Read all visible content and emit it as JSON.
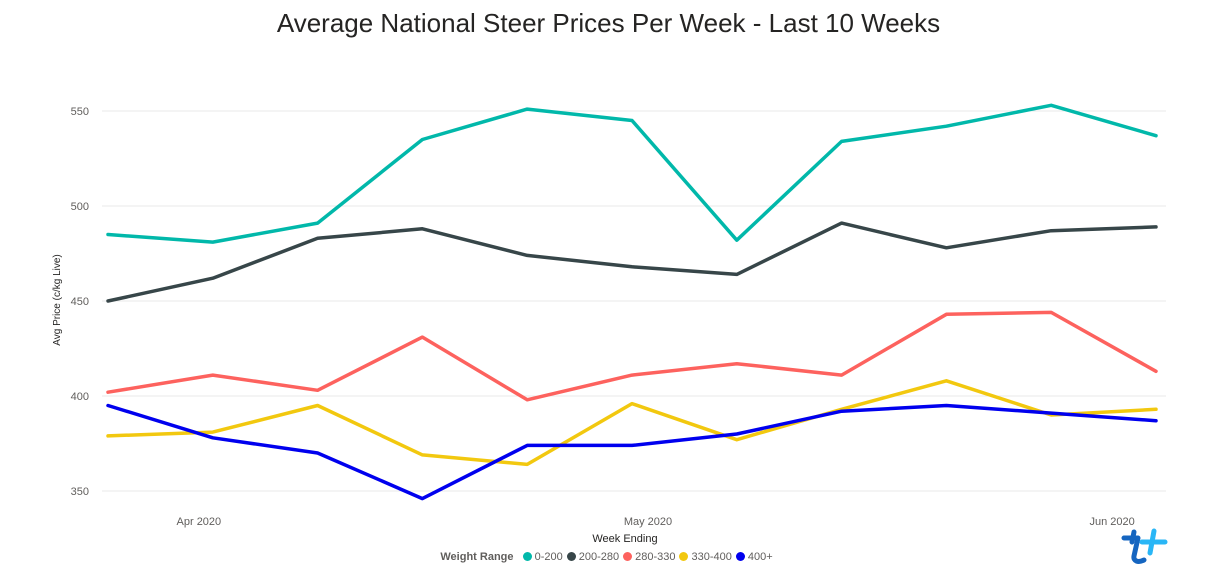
{
  "title": "Average National Steer Prices Per Week - Last 10 Weeks",
  "chart_data": {
    "type": "line",
    "title": "Average National Steer Prices Per Week - Last 10 Weeks",
    "xlabel": "Week Ending",
    "ylabel": "Avg Price (c/kg Live)",
    "x_ticks": [
      "Apr 2020",
      "May 2020",
      "Jun 2020"
    ],
    "x": [
      "2020-03-27",
      "2020-04-03",
      "2020-04-10",
      "2020-04-17",
      "2020-04-24",
      "2020-05-01",
      "2020-05-08",
      "2020-05-15",
      "2020-05-22",
      "2020-05-29",
      "2020-06-05"
    ],
    "y_ticks": [
      350,
      400,
      450,
      500,
      550
    ],
    "ylim": [
      340,
      560
    ],
    "grid": true,
    "legend_title": "Weight Range",
    "legend_position": "bottom",
    "series": [
      {
        "name": "0-200",
        "color": "#01b8aa",
        "values": [
          485,
          481,
          491,
          535,
          551,
          545,
          482,
          534,
          542,
          553,
          537
        ]
      },
      {
        "name": "200-280",
        "color": "#374649",
        "values": [
          450,
          462,
          483,
          488,
          474,
          468,
          464,
          491,
          478,
          487,
          489
        ]
      },
      {
        "name": "280-330",
        "color": "#fd625e",
        "values": [
          402,
          411,
          403,
          431,
          398,
          411,
          417,
          411,
          443,
          444,
          413
        ]
      },
      {
        "name": "330-400",
        "color": "#f2c80f",
        "values": [
          379,
          381,
          395,
          369,
          364,
          396,
          377,
          393,
          408,
          390,
          393
        ]
      },
      {
        "name": "400+",
        "color": "#0000ee",
        "values": [
          395,
          378,
          370,
          346,
          374,
          374,
          380,
          392,
          395,
          391,
          387
        ]
      }
    ]
  }
}
